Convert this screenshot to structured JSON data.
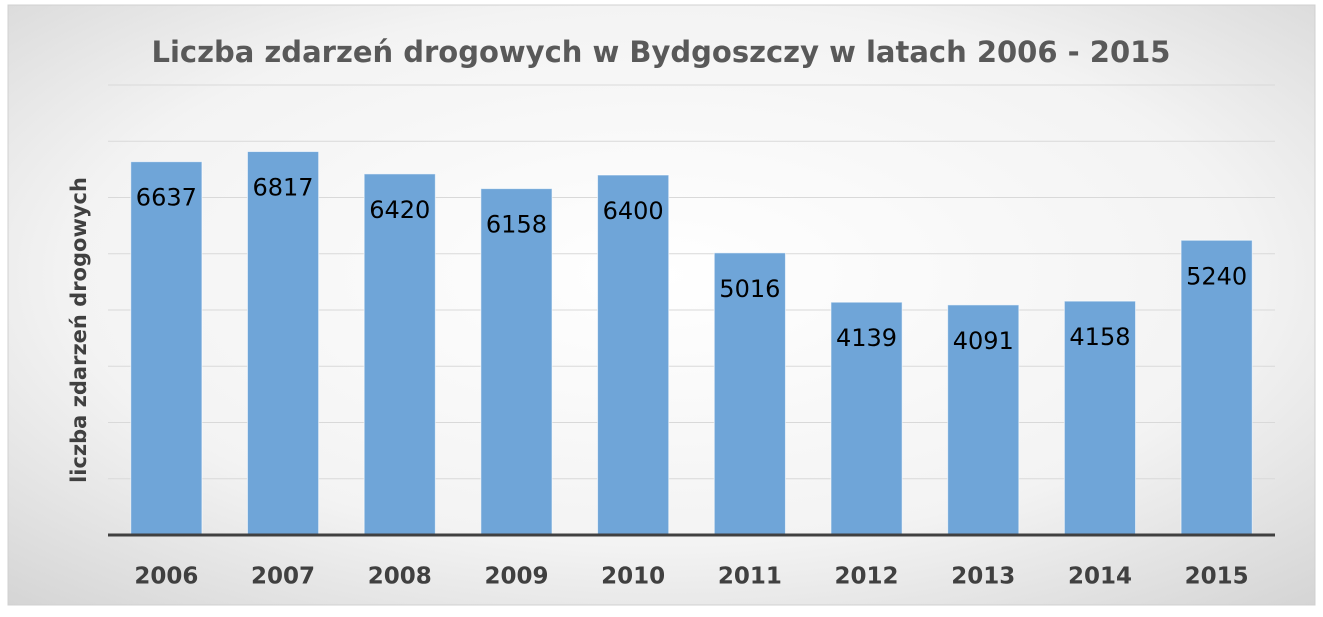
{
  "chart_data": {
    "type": "bar",
    "title": "Liczba zdarzeń drogowych w Bydgoszczy w latach 2006 - 2015",
    "y_label": "liczba zdarzeń drogowych",
    "categories": [
      "2006",
      "2007",
      "2008",
      "2009",
      "2010",
      "2011",
      "2012",
      "2013",
      "2014",
      "2015"
    ],
    "values": [
      6637,
      6817,
      6420,
      6158,
      6400,
      5016,
      4139,
      4091,
      4158,
      5240
    ],
    "color": "#6fa5d8",
    "ylim": [
      0,
      8000
    ],
    "yticks": [
      0,
      1000,
      2000,
      3000,
      4000,
      5000,
      6000,
      7000,
      8000
    ],
    "grid": true
  }
}
